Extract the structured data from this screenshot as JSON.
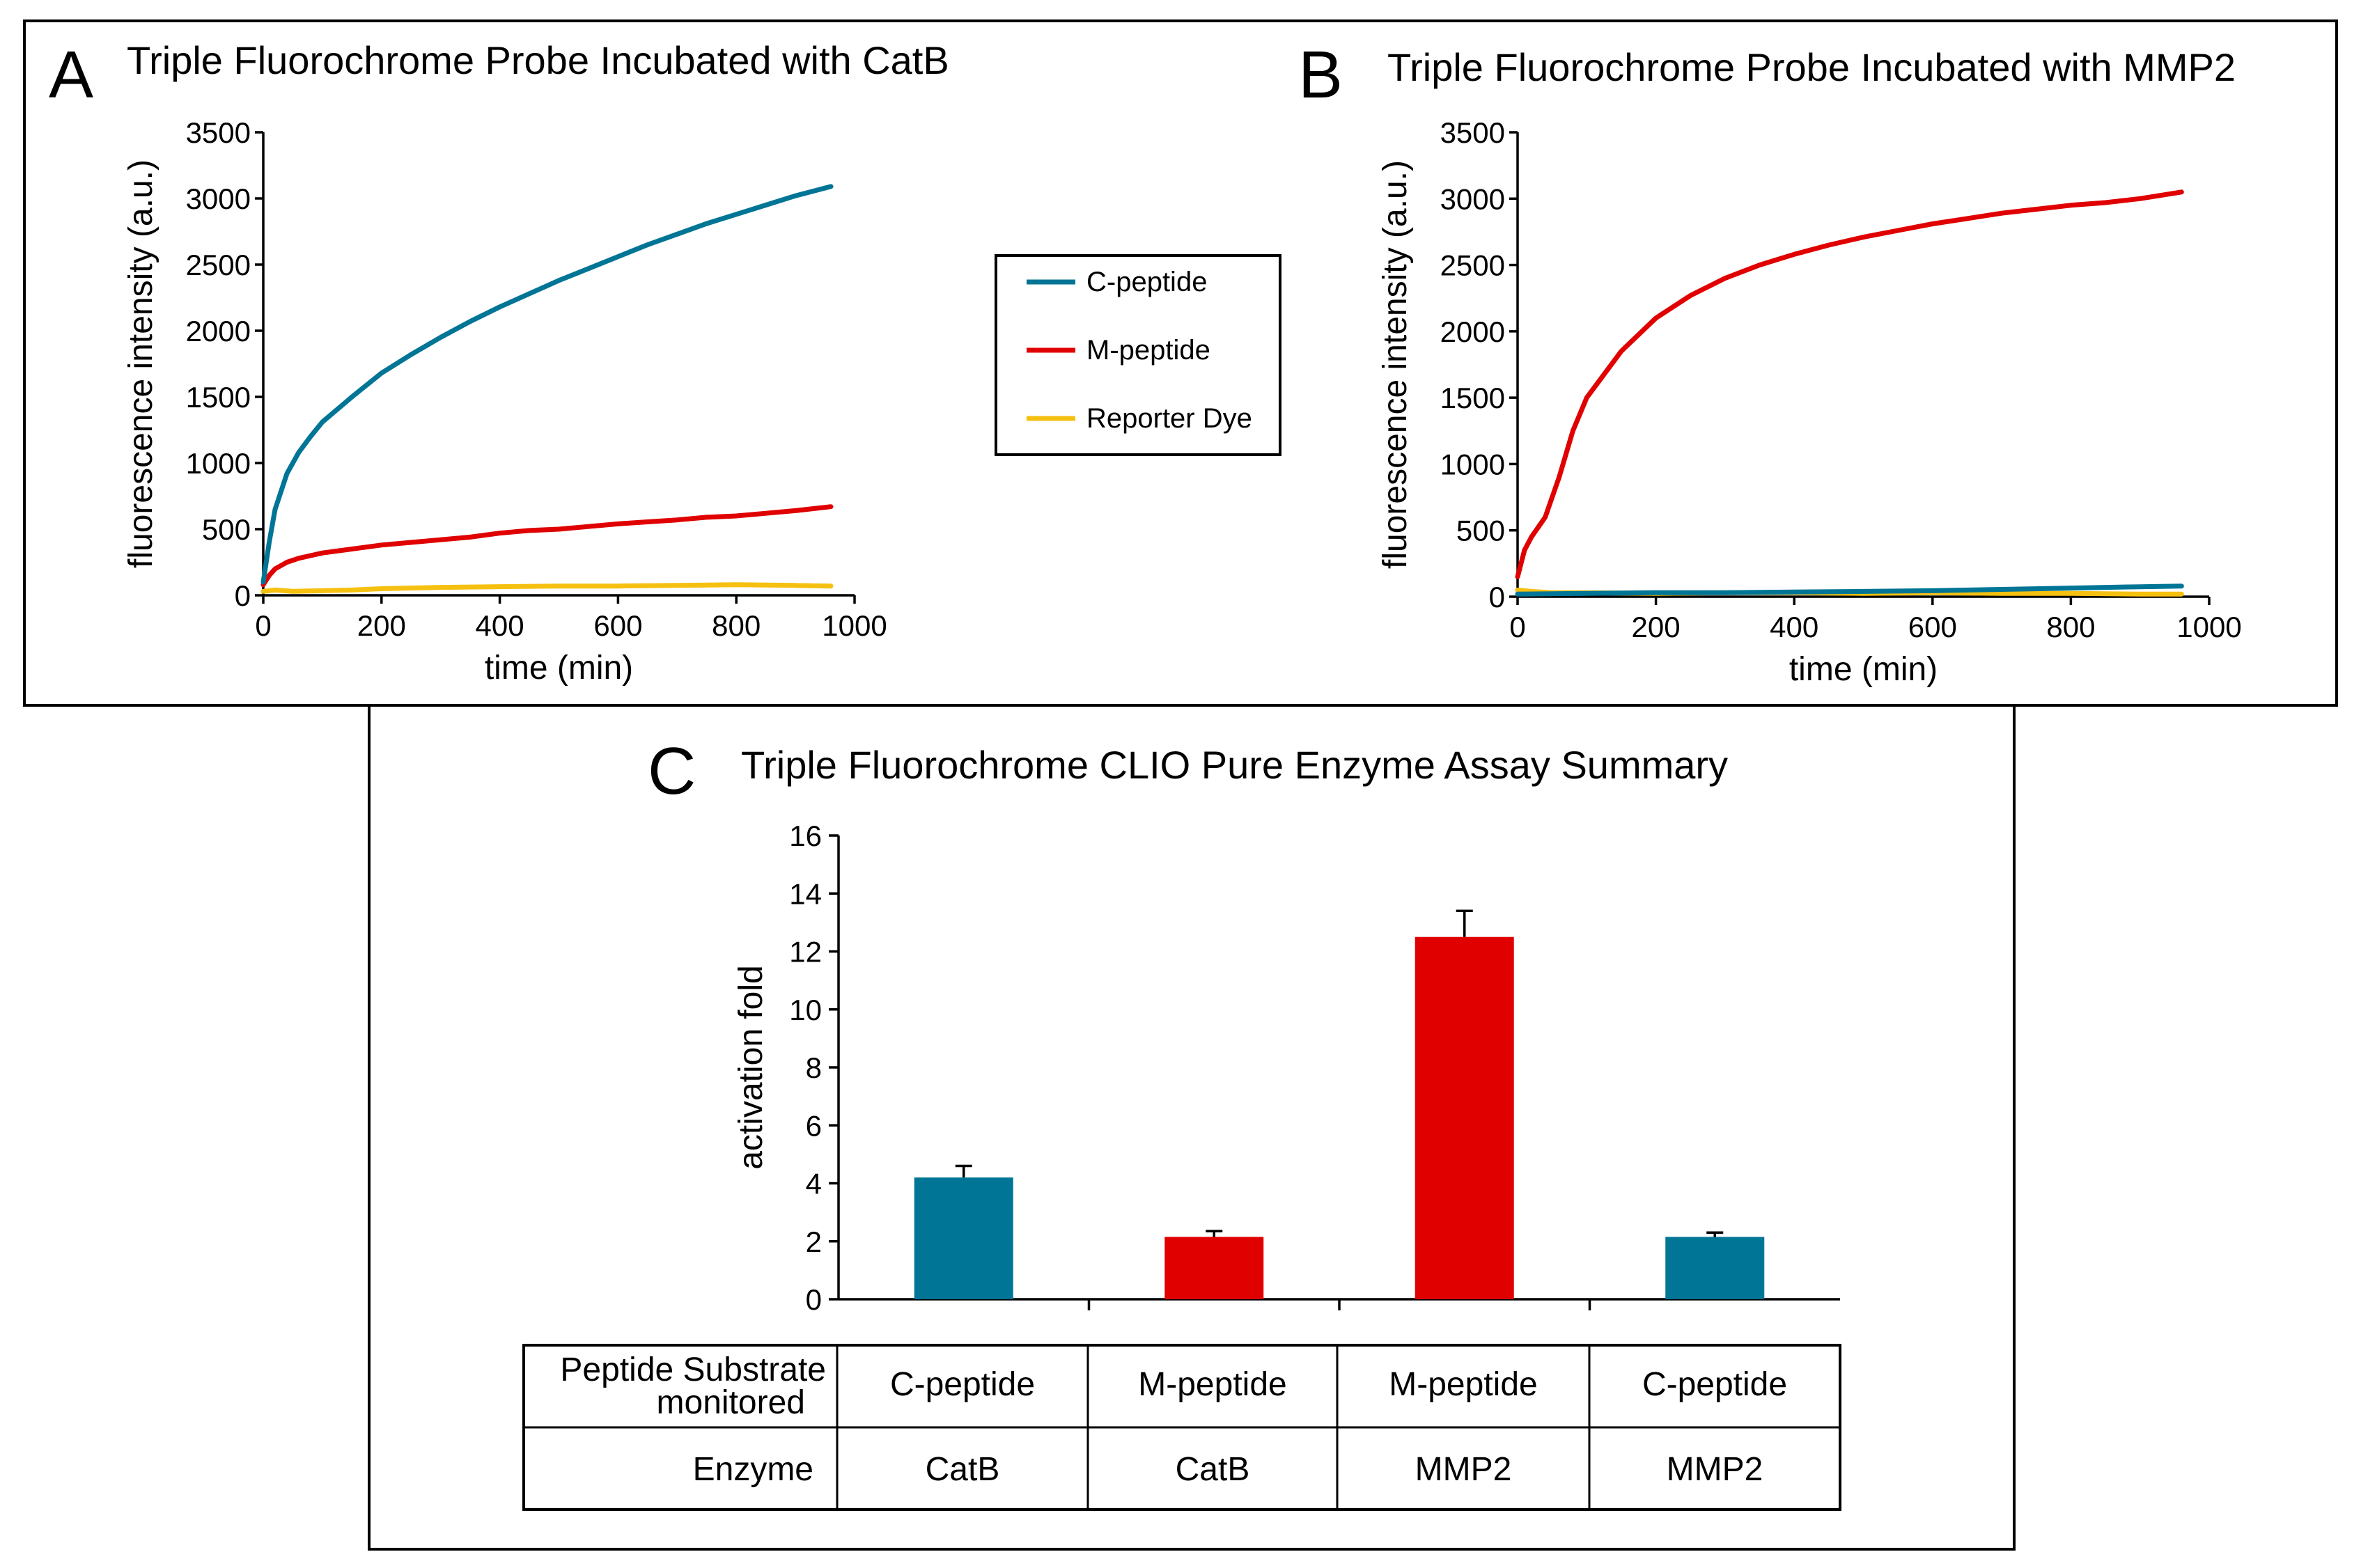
{
  "colors": {
    "c_peptide": "#007595",
    "m_peptide": "#e00000",
    "reporter_dye": "#f5c010"
  },
  "chart_data": [
    {
      "panel": "A",
      "type": "line",
      "title": "Triple Fluorochrome Probe Incubated with CatB",
      "xlabel": "time (min)",
      "ylabel": "fluorescence intensity (a.u.)",
      "xlim": [
        0,
        1000
      ],
      "ylim": [
        0,
        3500
      ],
      "xticks": [
        0,
        200,
        400,
        600,
        800,
        1000
      ],
      "yticks": [
        0,
        500,
        1000,
        1500,
        2000,
        2500,
        3000,
        3500
      ],
      "legend": "right",
      "series": [
        {
          "name": "C-peptide",
          "color": "#007595",
          "x": [
            0,
            10,
            20,
            40,
            60,
            80,
            100,
            150,
            200,
            250,
            300,
            350,
            400,
            450,
            500,
            550,
            600,
            650,
            700,
            750,
            800,
            850,
            900,
            960
          ],
          "y": [
            100,
            400,
            650,
            920,
            1080,
            1200,
            1310,
            1500,
            1680,
            1820,
            1950,
            2070,
            2180,
            2280,
            2380,
            2470,
            2560,
            2650,
            2730,
            2810,
            2880,
            2950,
            3020,
            3090
          ]
        },
        {
          "name": "M-peptide",
          "color": "#e00000",
          "x": [
            0,
            10,
            20,
            40,
            60,
            80,
            100,
            150,
            200,
            250,
            300,
            350,
            400,
            450,
            500,
            550,
            600,
            650,
            700,
            750,
            800,
            850,
            900,
            960
          ],
          "y": [
            80,
            150,
            200,
            250,
            280,
            300,
            320,
            350,
            380,
            400,
            420,
            440,
            470,
            490,
            500,
            520,
            540,
            555,
            570,
            590,
            600,
            620,
            640,
            670
          ]
        },
        {
          "name": "Reporter Dye",
          "color": "#f5c010",
          "x": [
            0,
            20,
            50,
            100,
            150,
            200,
            300,
            400,
            500,
            600,
            700,
            800,
            900,
            960
          ],
          "y": [
            30,
            40,
            30,
            35,
            40,
            50,
            60,
            65,
            70,
            70,
            75,
            80,
            75,
            70
          ]
        }
      ]
    },
    {
      "panel": "B",
      "type": "line",
      "title": "Triple Fluorochrome Probe Incubated with MMP2",
      "xlabel": "time (min)",
      "ylabel": "fluorescence intensity (a.u.)",
      "xlim": [
        0,
        1000
      ],
      "ylim": [
        0,
        3500
      ],
      "xticks": [
        0,
        200,
        400,
        600,
        800,
        1000
      ],
      "yticks": [
        0,
        500,
        1000,
        1500,
        2000,
        2500,
        3000,
        3500
      ],
      "series": [
        {
          "name": "C-peptide",
          "color": "#007595",
          "x": [
            0,
            100,
            200,
            300,
            400,
            500,
            600,
            700,
            800,
            900,
            960
          ],
          "y": [
            20,
            25,
            30,
            30,
            35,
            40,
            45,
            55,
            65,
            75,
            80
          ]
        },
        {
          "name": "M-peptide",
          "color": "#e00000",
          "x": [
            0,
            10,
            20,
            40,
            60,
            80,
            100,
            150,
            200,
            250,
            300,
            350,
            400,
            450,
            500,
            550,
            600,
            650,
            700,
            750,
            800,
            850,
            900,
            960
          ],
          "y": [
            150,
            350,
            450,
            600,
            900,
            1250,
            1500,
            1850,
            2100,
            2270,
            2400,
            2500,
            2580,
            2650,
            2710,
            2760,
            2810,
            2850,
            2890,
            2920,
            2950,
            2970,
            3000,
            3050
          ]
        },
        {
          "name": "Reporter Dye",
          "color": "#f5c010",
          "x": [
            0,
            20,
            50,
            100,
            200,
            300,
            400,
            500,
            600,
            700,
            800,
            900,
            960
          ],
          "y": [
            50,
            40,
            30,
            30,
            25,
            30,
            30,
            25,
            30,
            25,
            25,
            20,
            20
          ]
        }
      ]
    },
    {
      "panel": "C",
      "type": "bar",
      "title": "Triple Fluorochrome CLIO Pure Enzyme Assay Summary",
      "ylabel": "activation fold",
      "ylim": [
        0,
        16
      ],
      "yticks": [
        0,
        2,
        4,
        6,
        8,
        10,
        12,
        14,
        16
      ],
      "categories": [
        "C-peptide / CatB",
        "M-peptide / CatB",
        "M-peptide / MMP2",
        "C-peptide / MMP2"
      ],
      "values": [
        4.2,
        2.15,
        12.5,
        2.15
      ],
      "errors": [
        0.4,
        0.2,
        0.9,
        0.15
      ],
      "bar_colors": [
        "#007595",
        "#e00000",
        "#e00000",
        "#007595"
      ]
    }
  ],
  "legend": {
    "items": [
      {
        "label": "C-peptide",
        "color": "#007595"
      },
      {
        "label": "M-peptide",
        "color": "#e00000"
      },
      {
        "label": "Reporter Dye",
        "color": "#f5c010"
      }
    ]
  },
  "panels": {
    "a": {
      "letter": "A",
      "title": "Triple Fluorochrome Probe Incubated with CatB"
    },
    "b": {
      "letter": "B",
      "title": "Triple Fluorochrome Probe Incubated with MMP2"
    },
    "c": {
      "letter": "C",
      "title": "Triple Fluorochrome CLIO Pure Enzyme Assay Summary"
    }
  },
  "table": {
    "row1_header_line1": "Peptide Substrate",
    "row1_header_line2": "monitored",
    "row2_header": "Enzyme",
    "substrates": [
      "C-peptide",
      "M-peptide",
      "M-peptide",
      "C-peptide"
    ],
    "enzymes": [
      "CatB",
      "CatB",
      "MMP2",
      "MMP2"
    ]
  }
}
